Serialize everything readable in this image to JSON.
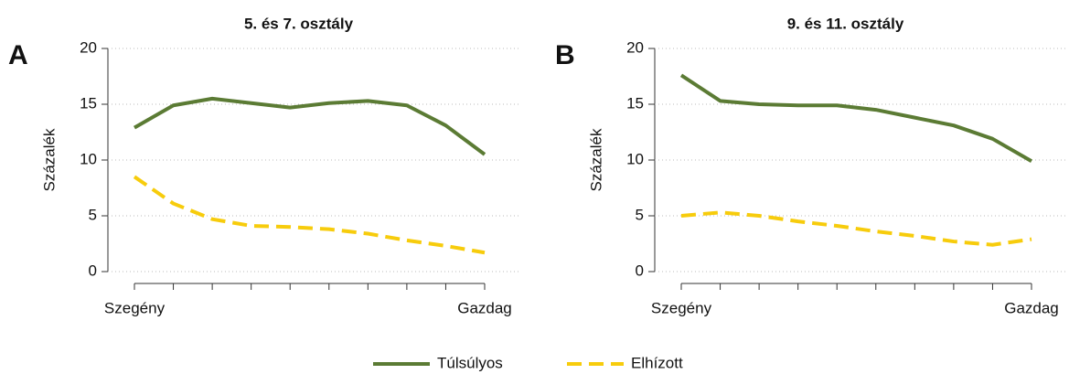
{
  "chart_data": [
    {
      "type": "line",
      "panel": "A",
      "title": "5. és 7. osztály",
      "ylabel": "Százalék",
      "categories": [
        "Szegény",
        null,
        null,
        null,
        null,
        null,
        null,
        null,
        null,
        "Gazdag"
      ],
      "series": [
        {
          "name": "Túlsúlyos",
          "color": "#5b7b34",
          "values": [
            12.9,
            14.9,
            15.5,
            15.1,
            14.7,
            15.1,
            15.3,
            14.9,
            13.1,
            10.5
          ]
        },
        {
          "name": "Elhízott",
          "color": "#f7cc0c",
          "dashed": true,
          "values": [
            8.5,
            6.1,
            4.7,
            4.1,
            4.0,
            3.8,
            3.4,
            2.8,
            2.3,
            1.7
          ]
        }
      ],
      "ylim": [
        0,
        20
      ],
      "yticks": [
        0,
        5,
        10,
        15,
        20
      ],
      "grid": true
    },
    {
      "type": "line",
      "panel": "B",
      "title": "9. és 11. osztály",
      "ylabel": "Százalék",
      "categories": [
        "Szegény",
        null,
        null,
        null,
        null,
        null,
        null,
        null,
        null,
        "Gazdag"
      ],
      "series": [
        {
          "color": "#5b7b34",
          "values": [
            17.6,
            15.3,
            15.0,
            14.9,
            14.9,
            14.5,
            13.8,
            13.1,
            11.9,
            9.9
          ]
        },
        {
          "color": "#f7cc0c",
          "dashed": true,
          "values": [
            5.0,
            5.3,
            5.0,
            4.5,
            4.1,
            3.6,
            3.2,
            2.7,
            2.4,
            2.9
          ]
        }
      ],
      "ylim": [
        0,
        20
      ],
      "yticks": [
        0,
        5,
        10,
        15,
        20
      ],
      "grid": true
    }
  ]
}
